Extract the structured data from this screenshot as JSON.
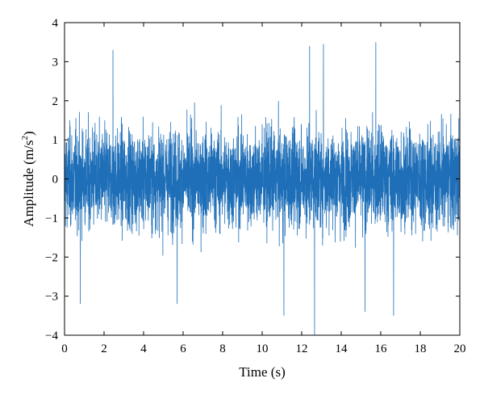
{
  "chart_data": {
    "type": "line",
    "title": "",
    "xlabel": "Time (s)",
    "ylabel": {
      "main": "Amplitude (m/s",
      "sup": "2",
      "close": ")"
    },
    "xlim": [
      0,
      20
    ],
    "ylim": [
      -4,
      4
    ],
    "x_ticks": [
      0,
      2,
      4,
      6,
      8,
      10,
      12,
      14,
      16,
      18,
      20
    ],
    "y_ticks": [
      -4,
      -3,
      -2,
      -1,
      0,
      1,
      2,
      3,
      4
    ],
    "x_tick_labels": [
      "0",
      "2",
      "4",
      "6",
      "8",
      "10",
      "12",
      "14",
      "16",
      "18",
      "20"
    ],
    "y_tick_labels": [
      "−4",
      "−3",
      "−2",
      "−1",
      "0",
      "1",
      "2",
      "3",
      "4"
    ],
    "grid": false,
    "legend": "none",
    "series": [
      {
        "color": "#1f6fb8",
        "description_values": {
          "bulk_range": [
            -1.6,
            1.6
          ],
          "typical_peak_range": [
            -2.6,
            3.0
          ],
          "notable_points": [
            {
              "x": 0.8,
              "y": -3.2
            },
            {
              "x": 2.45,
              "y": 3.3
            },
            {
              "x": 5.7,
              "y": -3.2
            },
            {
              "x": 11.1,
              "y": -3.5
            },
            {
              "x": 12.4,
              "y": 3.4
            },
            {
              "x": 12.65,
              "y": -4.0
            },
            {
              "x": 13.1,
              "y": 3.45
            },
            {
              "x": 15.2,
              "y": -3.4
            },
            {
              "x": 15.75,
              "y": 3.5
            },
            {
              "x": 16.65,
              "y": -3.5
            }
          ]
        }
      }
    ]
  }
}
